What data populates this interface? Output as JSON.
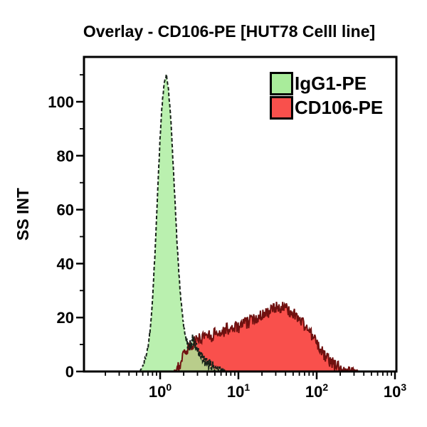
{
  "title": "Overlay - CD106-PE [HUT78 Celll line]",
  "legend": {
    "items": [
      {
        "label": "IgG1-PE",
        "color": "#a9ec9b"
      },
      {
        "label": "CD106-PE",
        "color": "#f9504c"
      }
    ]
  },
  "colors": {
    "green_fill": "#a9ec9b",
    "green_outline": "#18231a",
    "red_fill": "#f9504c",
    "red_outline": "#701110",
    "frame": "#000000",
    "background": "#ffffff"
  },
  "chart_data": {
    "type": "area",
    "title": "Overlay - CD106-PE [HUT78 Celll line]",
    "xlabel": "",
    "ylabel": "SS INT",
    "x_scale": "log",
    "xlim": [
      0.107,
      1045
    ],
    "ylim": [
      0,
      117
    ],
    "grid": false,
    "legend_position": "top-right",
    "noise_seed": 1337,
    "x_major_ticks": [
      {
        "base": "10",
        "exp": "0",
        "value": 1
      },
      {
        "base": "10",
        "exp": "1",
        "value": 10
      },
      {
        "base": "10",
        "exp": "2",
        "value": 100
      },
      {
        "base": "10",
        "exp": "3",
        "value": 1000
      }
    ],
    "y_major_ticks": [
      0,
      20,
      40,
      60,
      80,
      100
    ],
    "y_minor_ticks": [
      10,
      30,
      50,
      70,
      90,
      110
    ],
    "series": [
      {
        "name": "IgG1-PE",
        "fill": "#a9ec9b",
        "fill_opacity": 0.8,
        "outline": "#18231a",
        "outline_style": "dashed",
        "noise": 0.8,
        "noise_hi": 2.0,
        "noise_split_x": 2.2,
        "points": [
          [
            0.55,
            0
          ],
          [
            0.6,
            2
          ],
          [
            0.65,
            5
          ],
          [
            0.7,
            9
          ],
          [
            0.75,
            16
          ],
          [
            0.8,
            27
          ],
          [
            0.85,
            41
          ],
          [
            0.9,
            57
          ],
          [
            0.95,
            73
          ],
          [
            1.0,
            87
          ],
          [
            1.05,
            97
          ],
          [
            1.1,
            104
          ],
          [
            1.15,
            108
          ],
          [
            1.2,
            110
          ],
          [
            1.25,
            107
          ],
          [
            1.3,
            102
          ],
          [
            1.38,
            92
          ],
          [
            1.45,
            80
          ],
          [
            1.55,
            63
          ],
          [
            1.65,
            47
          ],
          [
            1.75,
            35
          ],
          [
            1.85,
            26
          ],
          [
            2.0,
            17
          ],
          [
            2.15,
            12
          ],
          [
            2.3,
            9
          ],
          [
            2.45,
            10
          ],
          [
            2.6,
            12
          ],
          [
            2.75,
            11
          ],
          [
            2.9,
            9
          ],
          [
            3.1,
            7
          ],
          [
            3.4,
            5
          ],
          [
            3.8,
            3.5
          ],
          [
            4.3,
            2.5
          ],
          [
            5,
            1.5
          ],
          [
            6,
            0.8
          ],
          [
            7,
            0
          ]
        ]
      },
      {
        "name": "CD106-PE",
        "fill": "#f9504c",
        "fill_opacity": 1.0,
        "outline": "#701110",
        "outline_style": "solid",
        "noise": 2.3,
        "points": [
          [
            1.5,
            0
          ],
          [
            1.65,
            1.5
          ],
          [
            1.8,
            3
          ],
          [
            2.0,
            6
          ],
          [
            2.2,
            8
          ],
          [
            2.5,
            10
          ],
          [
            2.8,
            11
          ],
          [
            3.1,
            12
          ],
          [
            3.5,
            13
          ],
          [
            4,
            14
          ],
          [
            4.6,
            13
          ],
          [
            5.3,
            15
          ],
          [
            6,
            14
          ],
          [
            7,
            16
          ],
          [
            8,
            15
          ],
          [
            9,
            17
          ],
          [
            10,
            16
          ],
          [
            11.5,
            18
          ],
          [
            13,
            18
          ],
          [
            15,
            19
          ],
          [
            17,
            20
          ],
          [
            19,
            21
          ],
          [
            22,
            22
          ],
          [
            25,
            22
          ],
          [
            28,
            23
          ],
          [
            32,
            24
          ],
          [
            36,
            24
          ],
          [
            41,
            23
          ],
          [
            47,
            22
          ],
          [
            54,
            21
          ],
          [
            62,
            19
          ],
          [
            71,
            17
          ],
          [
            81,
            15
          ],
          [
            93,
            12
          ],
          [
            107,
            9
          ],
          [
            125,
            6
          ],
          [
            145,
            4
          ],
          [
            170,
            2.5
          ],
          [
            200,
            1.5
          ],
          [
            240,
            1
          ],
          [
            290,
            0.7
          ],
          [
            350,
            0
          ]
        ]
      }
    ]
  }
}
